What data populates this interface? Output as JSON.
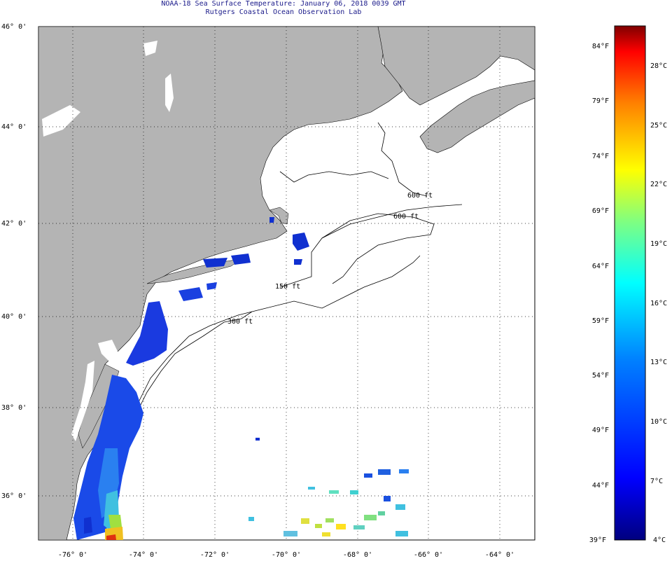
{
  "title": {
    "line1": "NOAA-18 Sea Surface Temperature:  January 06, 2018 0039 GMT",
    "line2": "Rutgers Coastal Ocean Observation Lab"
  },
  "lat_labels": [
    "46° 0'",
    "44° 0'",
    "42° 0'",
    "40° 0'",
    "38° 0'",
    "36° 0'"
  ],
  "lon_labels": [
    "-76° 0'",
    "-74° 0'",
    "-72° 0'",
    "-70° 0'",
    "-68° 0'",
    "-66° 0'",
    "-64° 0'"
  ],
  "isobaths": [
    "150 ft",
    "300 ft",
    "600 ft",
    "600 ft"
  ],
  "colorbar": {
    "fahrenheit": [
      "84°F",
      "79°F",
      "74°F",
      "69°F",
      "64°F",
      "59°F",
      "54°F",
      "49°F",
      "44°F",
      "39°F"
    ],
    "celsius": [
      "28°C",
      "25°C",
      "22°C",
      "19°C",
      "16°C",
      "13°C",
      "10°C",
      "7°C",
      "4°C"
    ]
  },
  "colors": {
    "land": "#b4b4b4",
    "ocean": "#ffffff",
    "title_text": "#1a1a8a",
    "grid": "#000000"
  }
}
